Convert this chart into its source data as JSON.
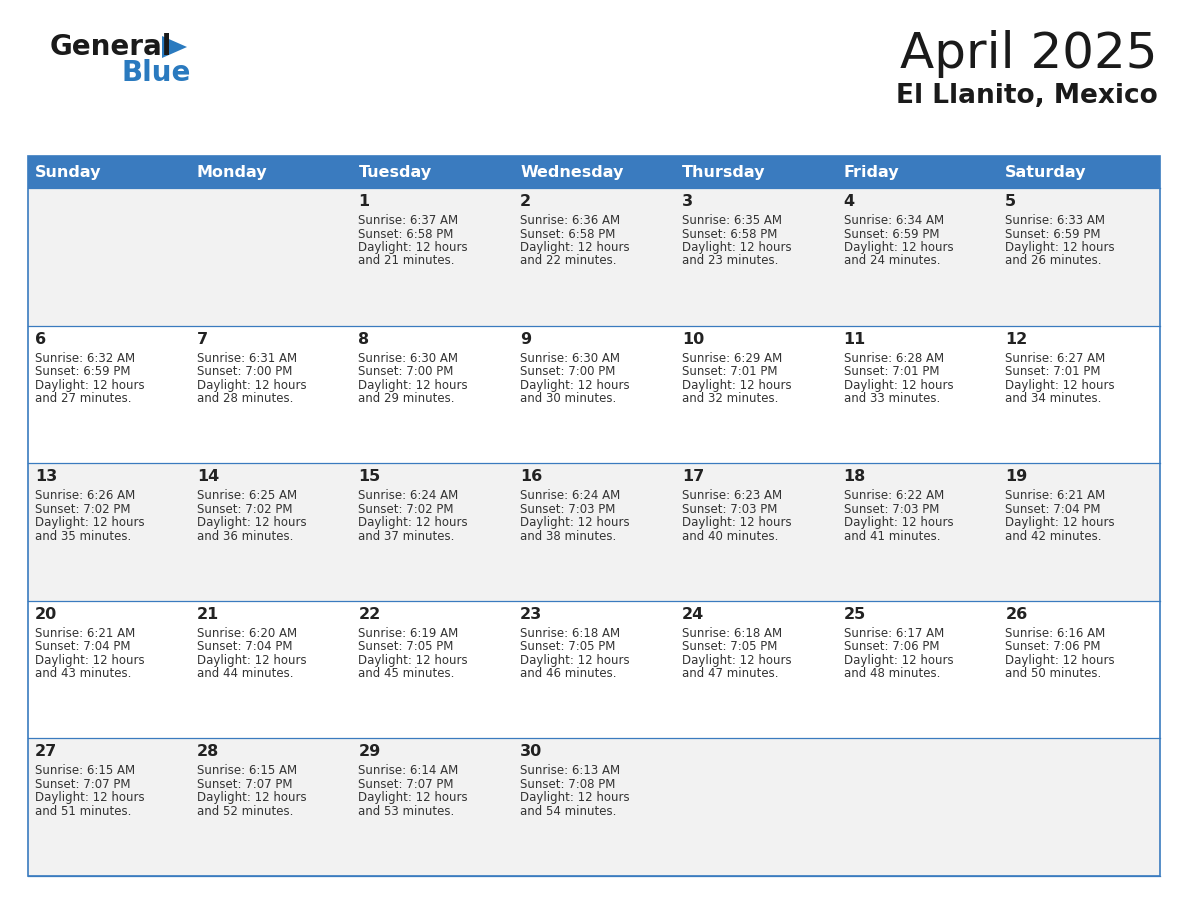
{
  "title": "April 2025",
  "subtitle": "El Llanito, Mexico",
  "header_bg": "#3a7bbf",
  "header_text": "#ffffff",
  "day_names": [
    "Sunday",
    "Monday",
    "Tuesday",
    "Wednesday",
    "Thursday",
    "Friday",
    "Saturday"
  ],
  "row_bg_odd": "#f2f2f2",
  "row_bg_even": "#ffffff",
  "cell_border": "#3a7bbf",
  "text_color": "#333333",
  "day_num_color": "#222222",
  "days": [
    {
      "day": 1,
      "col": 2,
      "row": 0,
      "sunrise": "6:37 AM",
      "sunset": "6:58 PM",
      "daylight_mins": "21"
    },
    {
      "day": 2,
      "col": 3,
      "row": 0,
      "sunrise": "6:36 AM",
      "sunset": "6:58 PM",
      "daylight_mins": "22"
    },
    {
      "day": 3,
      "col": 4,
      "row": 0,
      "sunrise": "6:35 AM",
      "sunset": "6:58 PM",
      "daylight_mins": "23"
    },
    {
      "day": 4,
      "col": 5,
      "row": 0,
      "sunrise": "6:34 AM",
      "sunset": "6:59 PM",
      "daylight_mins": "24"
    },
    {
      "day": 5,
      "col": 6,
      "row": 0,
      "sunrise": "6:33 AM",
      "sunset": "6:59 PM",
      "daylight_mins": "26"
    },
    {
      "day": 6,
      "col": 0,
      "row": 1,
      "sunrise": "6:32 AM",
      "sunset": "6:59 PM",
      "daylight_mins": "27"
    },
    {
      "day": 7,
      "col": 1,
      "row": 1,
      "sunrise": "6:31 AM",
      "sunset": "7:00 PM",
      "daylight_mins": "28"
    },
    {
      "day": 8,
      "col": 2,
      "row": 1,
      "sunrise": "6:30 AM",
      "sunset": "7:00 PM",
      "daylight_mins": "29"
    },
    {
      "day": 9,
      "col": 3,
      "row": 1,
      "sunrise": "6:30 AM",
      "sunset": "7:00 PM",
      "daylight_mins": "30"
    },
    {
      "day": 10,
      "col": 4,
      "row": 1,
      "sunrise": "6:29 AM",
      "sunset": "7:01 PM",
      "daylight_mins": "32"
    },
    {
      "day": 11,
      "col": 5,
      "row": 1,
      "sunrise": "6:28 AM",
      "sunset": "7:01 PM",
      "daylight_mins": "33"
    },
    {
      "day": 12,
      "col": 6,
      "row": 1,
      "sunrise": "6:27 AM",
      "sunset": "7:01 PM",
      "daylight_mins": "34"
    },
    {
      "day": 13,
      "col": 0,
      "row": 2,
      "sunrise": "6:26 AM",
      "sunset": "7:02 PM",
      "daylight_mins": "35"
    },
    {
      "day": 14,
      "col": 1,
      "row": 2,
      "sunrise": "6:25 AM",
      "sunset": "7:02 PM",
      "daylight_mins": "36"
    },
    {
      "day": 15,
      "col": 2,
      "row": 2,
      "sunrise": "6:24 AM",
      "sunset": "7:02 PM",
      "daylight_mins": "37"
    },
    {
      "day": 16,
      "col": 3,
      "row": 2,
      "sunrise": "6:24 AM",
      "sunset": "7:03 PM",
      "daylight_mins": "38"
    },
    {
      "day": 17,
      "col": 4,
      "row": 2,
      "sunrise": "6:23 AM",
      "sunset": "7:03 PM",
      "daylight_mins": "40"
    },
    {
      "day": 18,
      "col": 5,
      "row": 2,
      "sunrise": "6:22 AM",
      "sunset": "7:03 PM",
      "daylight_mins": "41"
    },
    {
      "day": 19,
      "col": 6,
      "row": 2,
      "sunrise": "6:21 AM",
      "sunset": "7:04 PM",
      "daylight_mins": "42"
    },
    {
      "day": 20,
      "col": 0,
      "row": 3,
      "sunrise": "6:21 AM",
      "sunset": "7:04 PM",
      "daylight_mins": "43"
    },
    {
      "day": 21,
      "col": 1,
      "row": 3,
      "sunrise": "6:20 AM",
      "sunset": "7:04 PM",
      "daylight_mins": "44"
    },
    {
      "day": 22,
      "col": 2,
      "row": 3,
      "sunrise": "6:19 AM",
      "sunset": "7:05 PM",
      "daylight_mins": "45"
    },
    {
      "day": 23,
      "col": 3,
      "row": 3,
      "sunrise": "6:18 AM",
      "sunset": "7:05 PM",
      "daylight_mins": "46"
    },
    {
      "day": 24,
      "col": 4,
      "row": 3,
      "sunrise": "6:18 AM",
      "sunset": "7:05 PM",
      "daylight_mins": "47"
    },
    {
      "day": 25,
      "col": 5,
      "row": 3,
      "sunrise": "6:17 AM",
      "sunset": "7:06 PM",
      "daylight_mins": "48"
    },
    {
      "day": 26,
      "col": 6,
      "row": 3,
      "sunrise": "6:16 AM",
      "sunset": "7:06 PM",
      "daylight_mins": "50"
    },
    {
      "day": 27,
      "col": 0,
      "row": 4,
      "sunrise": "6:15 AM",
      "sunset": "7:07 PM",
      "daylight_mins": "51"
    },
    {
      "day": 28,
      "col": 1,
      "row": 4,
      "sunrise": "6:15 AM",
      "sunset": "7:07 PM",
      "daylight_mins": "52"
    },
    {
      "day": 29,
      "col": 2,
      "row": 4,
      "sunrise": "6:14 AM",
      "sunset": "7:07 PM",
      "daylight_mins": "53"
    },
    {
      "day": 30,
      "col": 3,
      "row": 4,
      "sunrise": "6:13 AM",
      "sunset": "7:08 PM",
      "daylight_mins": "54"
    }
  ],
  "logo_color_general": "#1a1a1a",
  "logo_color_blue": "#2a7abf",
  "logo_triangle_color": "#2a7abf",
  "fig_width": 11.88,
  "fig_height": 9.18,
  "dpi": 100
}
